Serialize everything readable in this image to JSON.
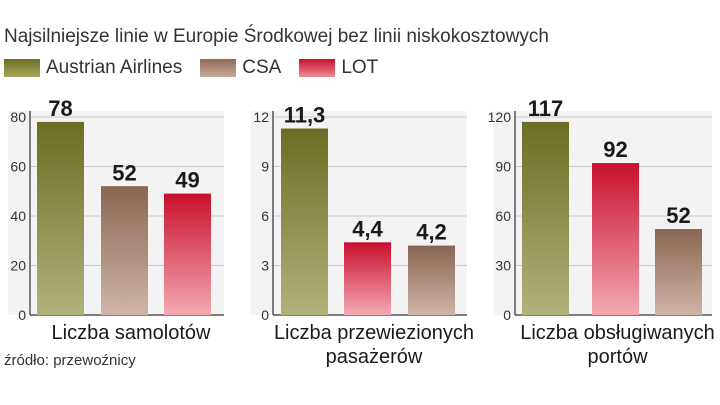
{
  "title": "Najsilniejsze linie w Europie Środkowej bez linii niskokosztowych",
  "legend": [
    {
      "label": "Austrian Airlines",
      "color": "#7b7d32"
    },
    {
      "label": "CSA",
      "color": "#a07f6b"
    },
    {
      "label": "LOT",
      "color": "#d8263a"
    }
  ],
  "source": "źródło: przewoźnicy",
  "chart_data": [
    {
      "type": "bar",
      "xlabel": [
        "Liczba samolotów"
      ],
      "ylim": [
        0,
        80
      ],
      "yticks": [
        "0",
        "20",
        "40",
        "60",
        "80"
      ],
      "categories": [
        "Austrian Airlines",
        "CSA",
        "LOT"
      ],
      "values": [
        78,
        52,
        49
      ],
      "value_labels": [
        "78",
        "52",
        "49"
      ],
      "colors": [
        "#7b7d32",
        "#a07f6b",
        "#d8263a"
      ]
    },
    {
      "type": "bar",
      "xlabel": [
        "Liczba przewiezionych",
        "pasażerów"
      ],
      "ylim": [
        0,
        12
      ],
      "yticks": [
        "0",
        "3",
        "6",
        "9",
        "12"
      ],
      "categories": [
        "Austrian Airlines",
        "LOT",
        "CSA"
      ],
      "values": [
        11.3,
        4.4,
        4.2
      ],
      "value_labels": [
        "11,3",
        "4,4",
        "4,2"
      ],
      "colors": [
        "#7b7d32",
        "#d8263a",
        "#a07f6b"
      ]
    },
    {
      "type": "bar",
      "xlabel": [
        "Liczba obsługiwanych",
        "portów"
      ],
      "ylim": [
        0,
        120
      ],
      "yticks": [
        "0",
        "30",
        "60",
        "90",
        "120"
      ],
      "categories": [
        "Austrian Airlines",
        "LOT",
        "CSA"
      ],
      "values": [
        117,
        92,
        52
      ],
      "value_labels": [
        "117",
        "92",
        "52"
      ],
      "colors": [
        "#7b7d32",
        "#d8263a",
        "#a07f6b"
      ]
    }
  ]
}
